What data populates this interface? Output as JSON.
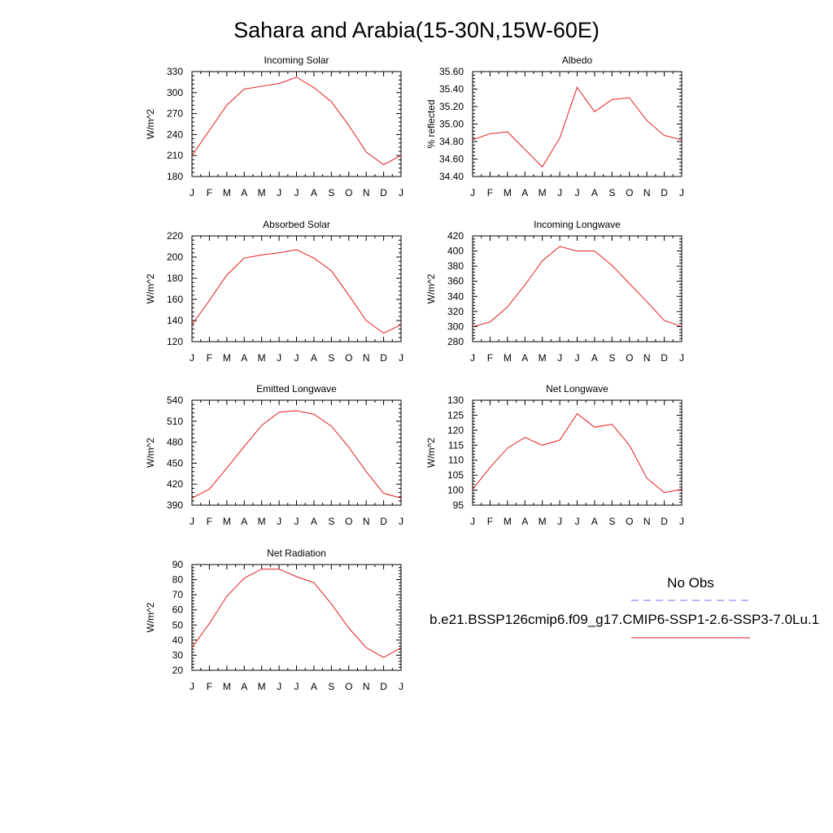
{
  "figure": {
    "title": "Sahara and Arabia(15-30N,15W-60E)"
  },
  "legend": {
    "obs_label": "No Obs",
    "obs_color": "#6b6bff",
    "model_label": "b.e21.BSSP126cmip6.f09_g17.CMIP6-SSP1-2.6-SSP3-7.0Lu.1",
    "model_color": "#e41a1c"
  },
  "chart_data": [
    {
      "type": "line",
      "title": "Incoming Solar",
      "ylabel": "W/m^2",
      "x": [
        "J",
        "F",
        "M",
        "A",
        "M",
        "J",
        "J",
        "A",
        "S",
        "O",
        "N",
        "D",
        "J"
      ],
      "ylim": [
        180,
        330
      ],
      "yticks": [
        "180",
        "210",
        "240",
        "270",
        "300",
        "330"
      ],
      "series": [
        {
          "values": [
            210,
            246,
            282,
            305,
            309,
            313,
            322,
            307,
            287,
            253,
            215,
            197,
            210
          ]
        }
      ]
    },
    {
      "type": "line",
      "title": "Albedo",
      "ylabel": "% reflected",
      "x": [
        "J",
        "F",
        "M",
        "A",
        "M",
        "J",
        "J",
        "A",
        "S",
        "O",
        "N",
        "D",
        "J"
      ],
      "ylim": [
        34.4,
        35.6
      ],
      "yticks": [
        "34.40",
        "34.60",
        "34.80",
        "35.00",
        "35.20",
        "35.40",
        "35.60"
      ],
      "series": [
        {
          "values": [
            34.82,
            34.89,
            34.91,
            34.71,
            34.51,
            34.84,
            35.42,
            35.14,
            35.28,
            35.3,
            35.04,
            34.87,
            34.82
          ]
        }
      ]
    },
    {
      "type": "line",
      "title": "Absorbed Solar",
      "ylabel": "W/m^2",
      "x": [
        "J",
        "F",
        "M",
        "A",
        "M",
        "J",
        "J",
        "A",
        "S",
        "O",
        "N",
        "D",
        "J"
      ],
      "ylim": [
        120,
        220
      ],
      "yticks": [
        "120",
        "140",
        "160",
        "180",
        "200",
        "220"
      ],
      "series": [
        {
          "values": [
            136,
            159,
            183,
            199,
            202,
            204,
            207,
            199,
            187,
            164,
            140,
            128,
            136
          ]
        }
      ]
    },
    {
      "type": "line",
      "title": "Incoming Longwave",
      "ylabel": "W/m^2",
      "x": [
        "J",
        "F",
        "M",
        "A",
        "M",
        "J",
        "J",
        "A",
        "S",
        "O",
        "N",
        "D",
        "J"
      ],
      "ylim": [
        280,
        420
      ],
      "yticks": [
        "280",
        "300",
        "320",
        "340",
        "360",
        "380",
        "400",
        "420"
      ],
      "series": [
        {
          "values": [
            300,
            306,
            326,
            355,
            387,
            406,
            400,
            400,
            381,
            357,
            333,
            308,
            300
          ]
        }
      ]
    },
    {
      "type": "line",
      "title": "Emitted Longwave",
      "ylabel": "W/m^2",
      "x": [
        "J",
        "F",
        "M",
        "A",
        "M",
        "J",
        "J",
        "A",
        "S",
        "O",
        "N",
        "D",
        "J"
      ],
      "ylim": [
        390,
        540
      ],
      "yticks": [
        "390",
        "420",
        "450",
        "480",
        "510",
        "540"
      ],
      "series": [
        {
          "values": [
            400,
            413,
            443,
            474,
            504,
            523,
            525,
            520,
            503,
            473,
            438,
            407,
            400
          ]
        }
      ]
    },
    {
      "type": "line",
      "title": "Net Longwave",
      "ylabel": "W/m^2",
      "x": [
        "J",
        "F",
        "M",
        "A",
        "M",
        "J",
        "J",
        "A",
        "S",
        "O",
        "N",
        "D",
        "J"
      ],
      "ylim": [
        95,
        130
      ],
      "yticks": [
        "95",
        "100",
        "105",
        "110",
        "115",
        "120",
        "125",
        "130"
      ],
      "series": [
        {
          "values": [
            100.3,
            107.6,
            114,
            117.6,
            115,
            116.7,
            125.5,
            121,
            122,
            115,
            104,
            99.2,
            100.3
          ]
        }
      ]
    },
    {
      "type": "line",
      "title": "Net Radiation",
      "ylabel": "W/m^2",
      "x": [
        "J",
        "F",
        "M",
        "A",
        "M",
        "J",
        "J",
        "A",
        "S",
        "O",
        "N",
        "D",
        "J"
      ],
      "ylim": [
        20,
        90
      ],
      "yticks": [
        "20",
        "30",
        "40",
        "50",
        "60",
        "70",
        "80",
        "90"
      ],
      "series": [
        {
          "values": [
            35,
            51,
            69,
            81,
            87,
            87,
            82,
            78,
            64,
            48,
            35,
            28.5,
            35
          ]
        }
      ]
    }
  ]
}
